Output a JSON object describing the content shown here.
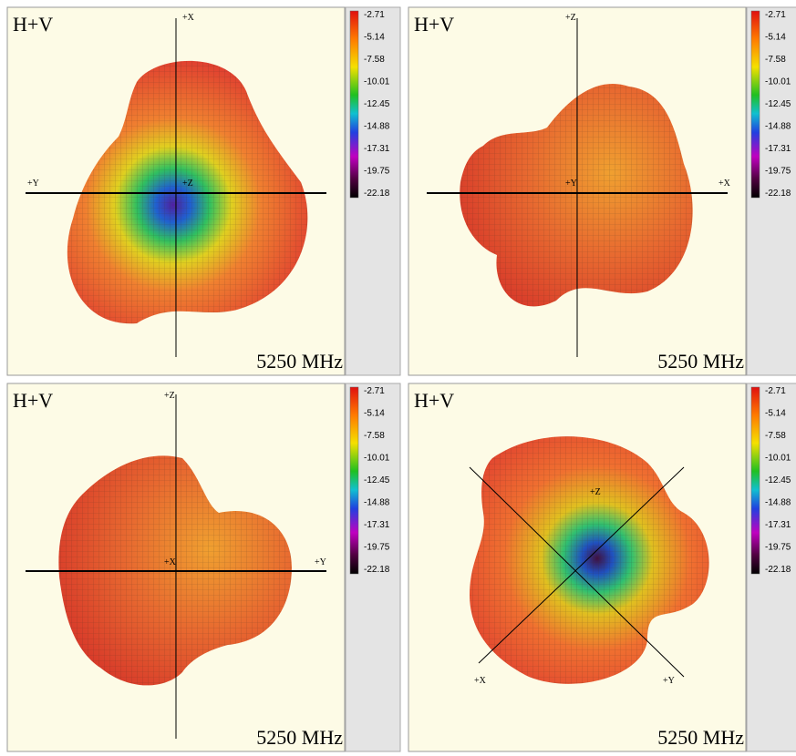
{
  "panels": [
    {
      "title": "H+V",
      "frequency": "5250 MHz",
      "axes": [
        "+X",
        "+Y",
        "+Z"
      ]
    },
    {
      "title": "H+V",
      "frequency": "5250 MHz",
      "axes": [
        "+Z",
        "+Y",
        "+X"
      ]
    },
    {
      "title": "H+V",
      "frequency": "5250 MHz",
      "axes": [
        "+Z",
        "+X",
        "+Y"
      ]
    },
    {
      "title": "H+V",
      "frequency": "5250 MHz",
      "axes": [
        "+Z",
        "+X",
        "+Y"
      ]
    }
  ],
  "colorbar": {
    "labels": [
      "-2.71",
      "-5.14",
      "-7.58",
      "-10.01",
      "-12.45",
      "-14.88",
      "-17.31",
      "-19.75",
      "-22.18"
    ]
  }
}
